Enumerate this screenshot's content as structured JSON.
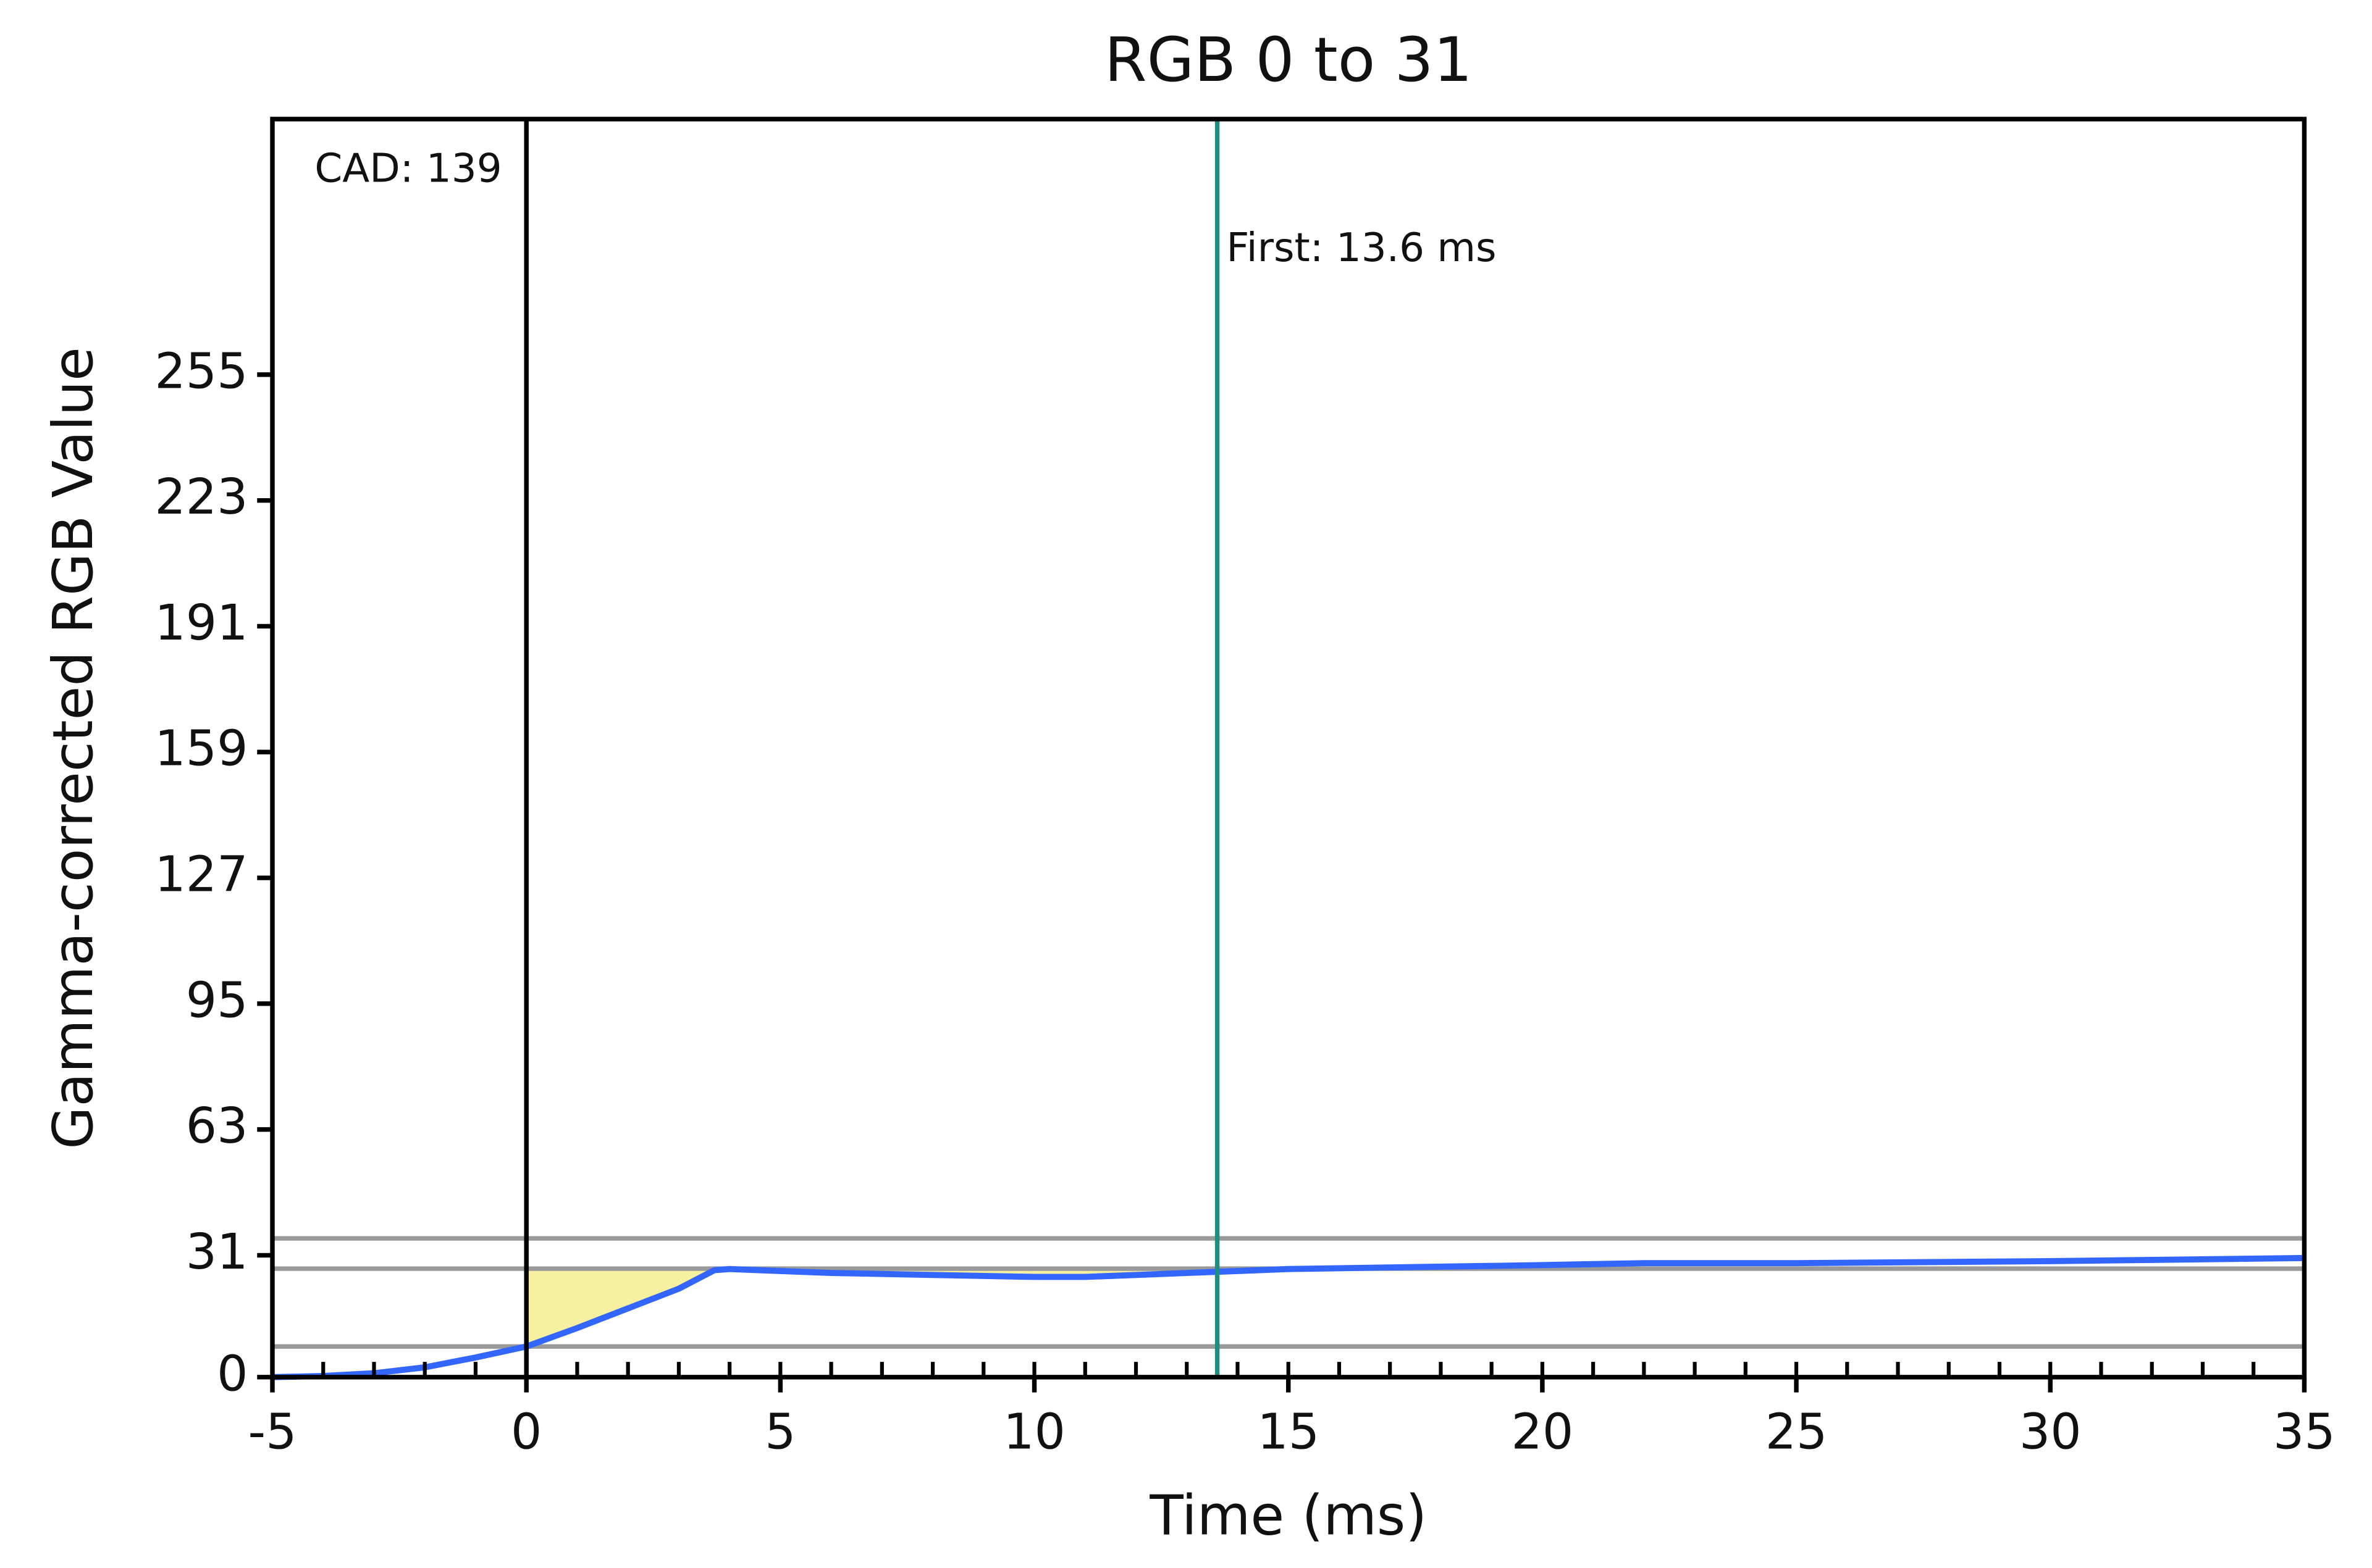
{
  "chart_data": {
    "type": "line",
    "title": "RGB 0 to 31",
    "x_label": "Time (ms)",
    "y_label": "Gamma-corrected RGB Value",
    "xlim": [
      -5,
      35
    ],
    "xticks": [
      -5,
      0,
      5,
      10,
      15,
      20,
      25,
      30,
      35
    ],
    "xminor_step": 1,
    "ylim": [
      0,
      320
    ],
    "yticks": [
      0,
      31,
      63,
      95,
      127,
      159,
      191,
      223,
      255
    ],
    "series": [
      {
        "color": "#3366ff",
        "x": [
          -5,
          -4,
          -3,
          -2,
          -1,
          0,
          1,
          2,
          3,
          3.7,
          4,
          5,
          6,
          8,
          10,
          11,
          12,
          13,
          14,
          15,
          20,
          22,
          25,
          30,
          35
        ],
        "values": [
          0,
          0.3,
          1,
          2.5,
          5,
          7.8,
          12.5,
          17.5,
          22.5,
          27.2,
          27.5,
          27,
          26.5,
          26,
          25.5,
          25.5,
          26,
          26.5,
          27,
          27.5,
          28.5,
          29,
          29,
          29.5,
          30.3
        ]
      }
    ],
    "hlines": [
      35.3,
      27.6,
      7.8
    ],
    "hline_color": "#999999",
    "vlines": [
      {
        "x": 0,
        "color": "#000000",
        "label": "CAD: 139"
      },
      {
        "x": 13.6,
        "color": "#1a9080",
        "label": "First: 13.6 ms"
      }
    ],
    "shade_color": "#f7f0a0"
  }
}
